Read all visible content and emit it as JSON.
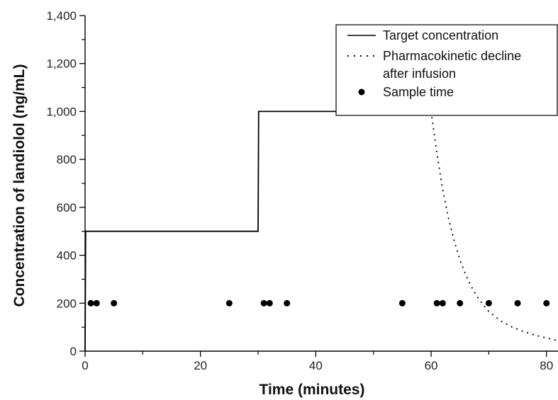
{
  "chart_data": {
    "type": "line",
    "xlabel": "Time (minutes)",
    "ylabel": "Concentration of landiolol (ng/mL)",
    "xlim": [
      0,
      82
    ],
    "ylim": [
      0,
      1400
    ],
    "x_ticks": [
      0,
      20,
      40,
      60,
      80
    ],
    "x_tick_labels": [
      "0",
      "20",
      "40",
      "60",
      "80"
    ],
    "y_ticks": [
      0,
      200,
      400,
      600,
      800,
      1000,
      1200,
      1400
    ],
    "y_tick_labels": [
      "0",
      "200",
      "400",
      "600",
      "800",
      "1,000",
      "1,200",
      "1,400"
    ],
    "legend_position": "top-right",
    "series": [
      {
        "name": "Target concentration",
        "style": "solid",
        "x": [
          0,
          0.1,
          30,
          30.1,
          60
        ],
        "y": [
          0,
          500,
          500,
          1000,
          1000
        ]
      },
      {
        "name": "Pharmacokinetic decline after infusion",
        "style": "dotted",
        "x": [
          60,
          61,
          62,
          63,
          64,
          65,
          66,
          67,
          68,
          69,
          70,
          72,
          74,
          76,
          78,
          80,
          82
        ],
        "y": [
          1000,
          825,
          675,
          555,
          460,
          380,
          318,
          268,
          227,
          194,
          166,
          127,
          101,
          82,
          67,
          55,
          44
        ]
      },
      {
        "name": "Sample time",
        "style": "markers",
        "x": [
          1,
          2,
          5,
          25,
          31,
          32,
          35,
          55,
          61,
          62,
          65,
          70,
          75,
          80
        ],
        "y": [
          200,
          200,
          200,
          200,
          200,
          200,
          200,
          200,
          200,
          200,
          200,
          200,
          200,
          200
        ]
      }
    ],
    "legend": {
      "line1": "Target concentration",
      "line2a": "Pharmacokinetic decline",
      "line2b": "after infusion",
      "line3": "Sample time"
    }
  }
}
